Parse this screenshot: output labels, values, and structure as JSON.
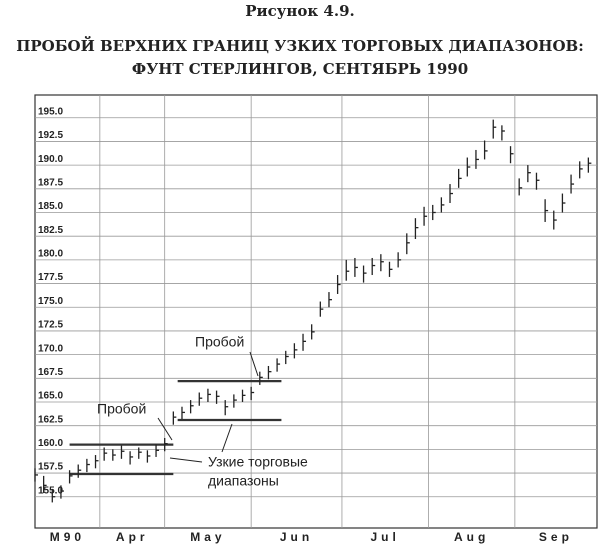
{
  "chart_data": {
    "type": "hlc",
    "figure_label": "Рисунок 4.9.",
    "title": [
      "ПРОБОЙ ВЕРХНИХ ГРАНИЦ УЗКИХ ТОРГОВЫХ ДИАПАЗОНОВ:",
      "ФУНТ СТЕРЛИНГОВ, СЕНТЯБРЬ 1990"
    ],
    "months": [
      "M90",
      "Apr",
      "May",
      "Jun",
      "Jul",
      "Aug",
      "Sep"
    ],
    "xlim": [
      0,
      130
    ],
    "xticks": [
      15,
      30,
      50,
      71,
      91,
      111
    ],
    "ylim": [
      151.7,
      197.4
    ],
    "yticks": [
      {
        "value": 155,
        "label": "155.0"
      },
      {
        "value": 157.5,
        "label": "157.5"
      },
      {
        "value": 160,
        "label": "160.0"
      },
      {
        "value": 162.5,
        "label": "162.5"
      },
      {
        "value": 165,
        "label": "165.0"
      },
      {
        "value": 167.5,
        "label": "167.5"
      },
      {
        "value": 170,
        "label": "170.0"
      },
      {
        "value": 172.5,
        "label": "172.5"
      },
      {
        "value": 175,
        "label": "175.0"
      },
      {
        "value": 177.5,
        "label": "177.5"
      },
      {
        "value": 180,
        "label": "180.0"
      },
      {
        "value": 182.5,
        "label": "182.5"
      },
      {
        "value": 185,
        "label": "185.0"
      },
      {
        "value": 187.5,
        "label": "187.5"
      },
      {
        "value": 190,
        "label": "190.0"
      },
      {
        "value": 192.5,
        "label": "192.5"
      },
      {
        "value": 195,
        "label": "195.0"
      }
    ],
    "grid": true,
    "color": "#222222",
    "x": [
      0,
      2,
      4,
      6,
      8,
      10,
      12,
      14,
      16,
      18,
      20,
      22,
      24,
      26,
      28,
      30,
      32,
      34,
      36,
      38,
      40,
      42,
      44,
      46,
      48,
      50,
      52,
      54,
      56,
      58,
      60,
      62,
      64,
      66,
      68,
      70,
      72,
      74,
      76,
      78,
      80,
      82,
      84,
      86,
      88,
      90,
      92,
      94,
      96,
      98,
      100,
      102,
      104,
      106,
      108,
      110,
      112,
      114,
      116,
      118,
      120,
      122,
      124,
      126,
      128
    ],
    "high": [
      158.0,
      157.2,
      155.8,
      156.2,
      157.8,
      158.4,
      159.0,
      159.4,
      160.2,
      160.0,
      160.4,
      159.8,
      160.2,
      159.9,
      160.5,
      161.2,
      164.0,
      164.5,
      165.2,
      166.0,
      166.4,
      166.2,
      165.2,
      165.8,
      166.3,
      166.6,
      168.2,
      168.8,
      169.6,
      170.4,
      171.2,
      172.2,
      173.2,
      175.6,
      176.6,
      178.4,
      180.0,
      180.2,
      179.4,
      180.2,
      180.6,
      179.8,
      180.8,
      182.8,
      184.4,
      185.6,
      185.8,
      186.6,
      188.0,
      189.6,
      190.8,
      191.6,
      192.6,
      194.8,
      194.2,
      192.0,
      188.6,
      190.0,
      189.2,
      186.4,
      185.2,
      187.0,
      189.0,
      190.4,
      190.8
    ],
    "low": [
      156.6,
      155.4,
      154.4,
      154.8,
      156.4,
      157.0,
      157.6,
      158.0,
      158.8,
      158.8,
      159.0,
      158.4,
      159.0,
      158.6,
      159.2,
      159.8,
      162.6,
      163.2,
      163.8,
      164.6,
      165.0,
      164.8,
      163.6,
      164.4,
      165.0,
      165.2,
      166.8,
      167.4,
      168.2,
      169.0,
      169.6,
      170.4,
      171.6,
      174.0,
      175.0,
      176.4,
      177.8,
      178.2,
      177.6,
      178.4,
      178.8,
      178.2,
      179.2,
      180.6,
      182.2,
      183.6,
      184.2,
      185.0,
      186.0,
      187.6,
      188.8,
      189.6,
      190.6,
      192.8,
      192.6,
      190.2,
      186.8,
      188.2,
      187.4,
      184.0,
      183.2,
      185.0,
      187.0,
      188.6,
      189.2
    ],
    "close": [
      157.3,
      156.2,
      155.0,
      155.6,
      157.2,
      157.8,
      158.4,
      158.8,
      159.6,
      159.4,
      159.8,
      159.2,
      159.7,
      159.3,
      159.9,
      160.6,
      163.4,
      163.9,
      164.6,
      165.4,
      165.8,
      165.6,
      164.5,
      165.2,
      165.7,
      166.0,
      167.6,
      168.2,
      169.0,
      169.8,
      170.5,
      171.4,
      172.4,
      174.8,
      175.8,
      177.4,
      178.8,
      179.2,
      178.6,
      179.4,
      179.8,
      179.0,
      180.0,
      181.8,
      183.4,
      184.6,
      185.0,
      185.8,
      187.0,
      188.6,
      189.8,
      190.6,
      191.5,
      194.0,
      193.6,
      191.2,
      187.6,
      189.2,
      188.4,
      185.2,
      184.2,
      186.0,
      188.0,
      189.6,
      190.2
    ],
    "ranges": [
      {
        "x": [
          8,
          32
        ],
        "value": 160.5
      },
      {
        "x": [
          8,
          32
        ],
        "value": 157.4
      },
      {
        "x": [
          33,
          57
        ],
        "value": 167.2
      },
      {
        "x": [
          33,
          57
        ],
        "value": 163.1
      }
    ],
    "annotations": [
      "Пробой",
      "Пробой",
      "Узкие торговые",
      "диапазоны"
    ]
  }
}
